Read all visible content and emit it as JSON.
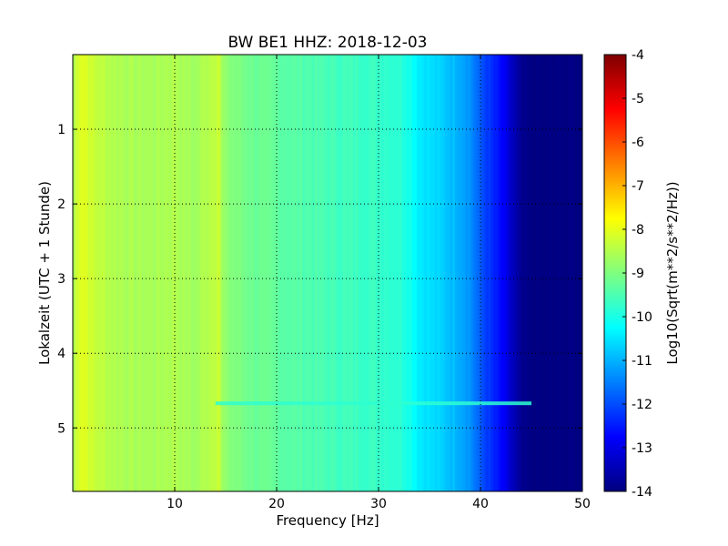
{
  "chart_data": {
    "type": "heatmap",
    "title": "BW BE1 HHZ: 2018-12-03",
    "xlabel": "Frequency [Hz]",
    "ylabel": "Lokalzeit (UTC + 1 Stunde)",
    "xlim": [
      0,
      50
    ],
    "ylim": [
      5.85,
      0
    ],
    "x_ticks": [
      10,
      20,
      30,
      40,
      50
    ],
    "y_ticks": [
      1,
      2,
      3,
      4,
      5
    ],
    "grid": true,
    "colormap": "jet",
    "colorbar": {
      "label": "Log10(Sqrt(m**2/s**2/Hz))",
      "range": [
        -14,
        -4
      ],
      "ticks": [
        -4,
        -5,
        -6,
        -7,
        -8,
        -9,
        -10,
        -11,
        -12,
        -13,
        -14
      ]
    },
    "profile": {
      "frequency_hz": [
        0,
        0.5,
        1,
        2,
        4,
        6,
        8,
        10,
        12,
        14,
        15,
        18,
        22,
        26,
        30,
        32,
        33,
        34,
        36,
        38,
        39,
        40,
        41,
        42,
        43,
        44,
        45,
        50
      ],
      "log10_amplitude": [
        -8.7,
        -8.1,
        -8.0,
        -8.3,
        -8.5,
        -8.6,
        -8.6,
        -8.5,
        -8.7,
        -8.3,
        -8.9,
        -9.2,
        -9.4,
        -9.6,
        -9.7,
        -9.8,
        -10.0,
        -10.4,
        -10.7,
        -11.0,
        -11.3,
        -11.9,
        -12.3,
        -12.7,
        -13.3,
        -13.9,
        -14.0,
        -14.0
      ]
    },
    "features": [
      {
        "type": "line",
        "frequency_hz": 14.3,
        "log10_amplitude": -8.2
      },
      {
        "type": "band",
        "time": 4.67,
        "frequency_hz": [
          14,
          45
        ],
        "log10_amplitude": -9.8
      }
    ]
  }
}
